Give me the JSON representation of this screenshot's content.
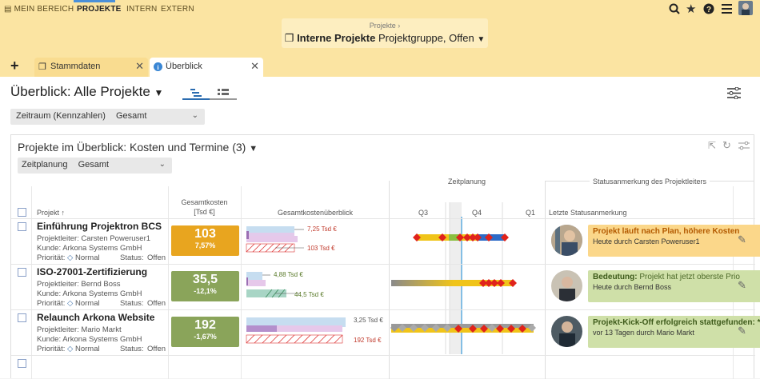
{
  "topnav": {
    "items": [
      {
        "label": "MEIN BEREICH",
        "icon": "document-icon"
      },
      {
        "label": "PROJEKTE"
      },
      {
        "label": "INTERN"
      },
      {
        "label": "EXTERN"
      }
    ],
    "active_index": 1
  },
  "breadcrumb": {
    "parent": "Projekte",
    "separator": "›",
    "current_bold": "Interne Projekte",
    "current_suffix": "Projektgruppe, Offen"
  },
  "tabs": [
    {
      "label": "Stammdaten",
      "icon": "folder-icon"
    },
    {
      "label": "Überblick",
      "icon": "info-icon"
    }
  ],
  "page": {
    "title": "Überblick: Alle Projekte",
    "filter_label": "Zeitraum (Kennzahlen)",
    "filter_value": "Gesamt"
  },
  "panel": {
    "title": "Projekte im Überblick: Kosten und Termine (3)",
    "filter_label": "Zeitplanung",
    "filter_value": "Gesamt",
    "headers": {
      "project": "Projekt ↑",
      "total_cost": "Gesamtkosten",
      "total_cost_unit": "[Tsd €]",
      "cost_overview": "Gesamtkostenüberblick",
      "schedule": "Zeitplanung",
      "q3": "Q3",
      "q4": "Q4",
      "q1": "Q1",
      "status_group": "Statusanmerkung des Projektleiters",
      "last_status": "Letzte Statusanmerkung"
    }
  },
  "projects": [
    {
      "name": "Einführung Projektron BCS",
      "leader_line": "Projektleiter:  Carsten Poweruser1",
      "customer_line": "Kunde:  Arkona Systems GmbH",
      "priority_label": "Priorität:",
      "priority": "Normal",
      "status_label": "Status:",
      "status": "Offen",
      "kpi_value": "103",
      "kpi_delta": "7,57%",
      "kpi_color": "#e8a51f",
      "cost_top": "7,25 Tsd €",
      "cost_bottom": "103 Tsd €",
      "cost_bottom_color": "#c0392b",
      "status_bold": "Projekt läuft nach Plan, höhere Kosten",
      "status_bold_color": "#b35a00",
      "status_rest": "",
      "status_by": "Heute durch Carsten Poweruser1",
      "status_bg": "#fbd78a",
      "status_border": "#e8a51f"
    },
    {
      "name": "ISO-27001-Zertifizierung",
      "leader_line": "Projektleiter:  Bernd Boss",
      "customer_line": "Kunde:  Arkona Systems GmbH",
      "priority_label": "Priorität:",
      "priority": "Normal",
      "status_label": "Status:",
      "status": "Offen",
      "kpi_value": "35,5",
      "kpi_delta": "-12,1%",
      "kpi_color": "#8aa45a",
      "cost_top": "4,88 Tsd €",
      "cost_bottom": "44,5 Tsd €",
      "cost_bottom_color": "#5a7a2a",
      "status_bold": "Bedeutung:",
      "status_bold_color": "#3d5a1a",
      "status_rest": " Projekt hat jetzt oberste Prio",
      "status_by": "Heute durch Bernd Boss",
      "status_bg": "#cfe0a8",
      "status_border": "#8aa45a"
    },
    {
      "name": "Relaunch Arkona Website",
      "leader_line": "Projektleiter:  Mario Markt",
      "customer_line": "Kunde:  Arkona Systems GmbH",
      "priority_label": "Priorität:",
      "priority": "Normal",
      "status_label": "Status:",
      "status": "Offen",
      "kpi_value": "192",
      "kpi_delta": "-1,67%",
      "kpi_color": "#8aa45a",
      "cost_top": "3,25 Tsd €",
      "cost_bottom": "192 Tsd €",
      "cost_bottom_color": "#c0392b",
      "status_bold": "Projekt-Kick-Off erfolgreich stattgefunden: *",
      "status_bold_color": "#3d5a1a",
      "status_rest": "",
      "status_by": "vor 13 Tagen durch Mario Markt",
      "status_bg": "#cfe0a8",
      "status_border": "#8aa45a"
    }
  ]
}
